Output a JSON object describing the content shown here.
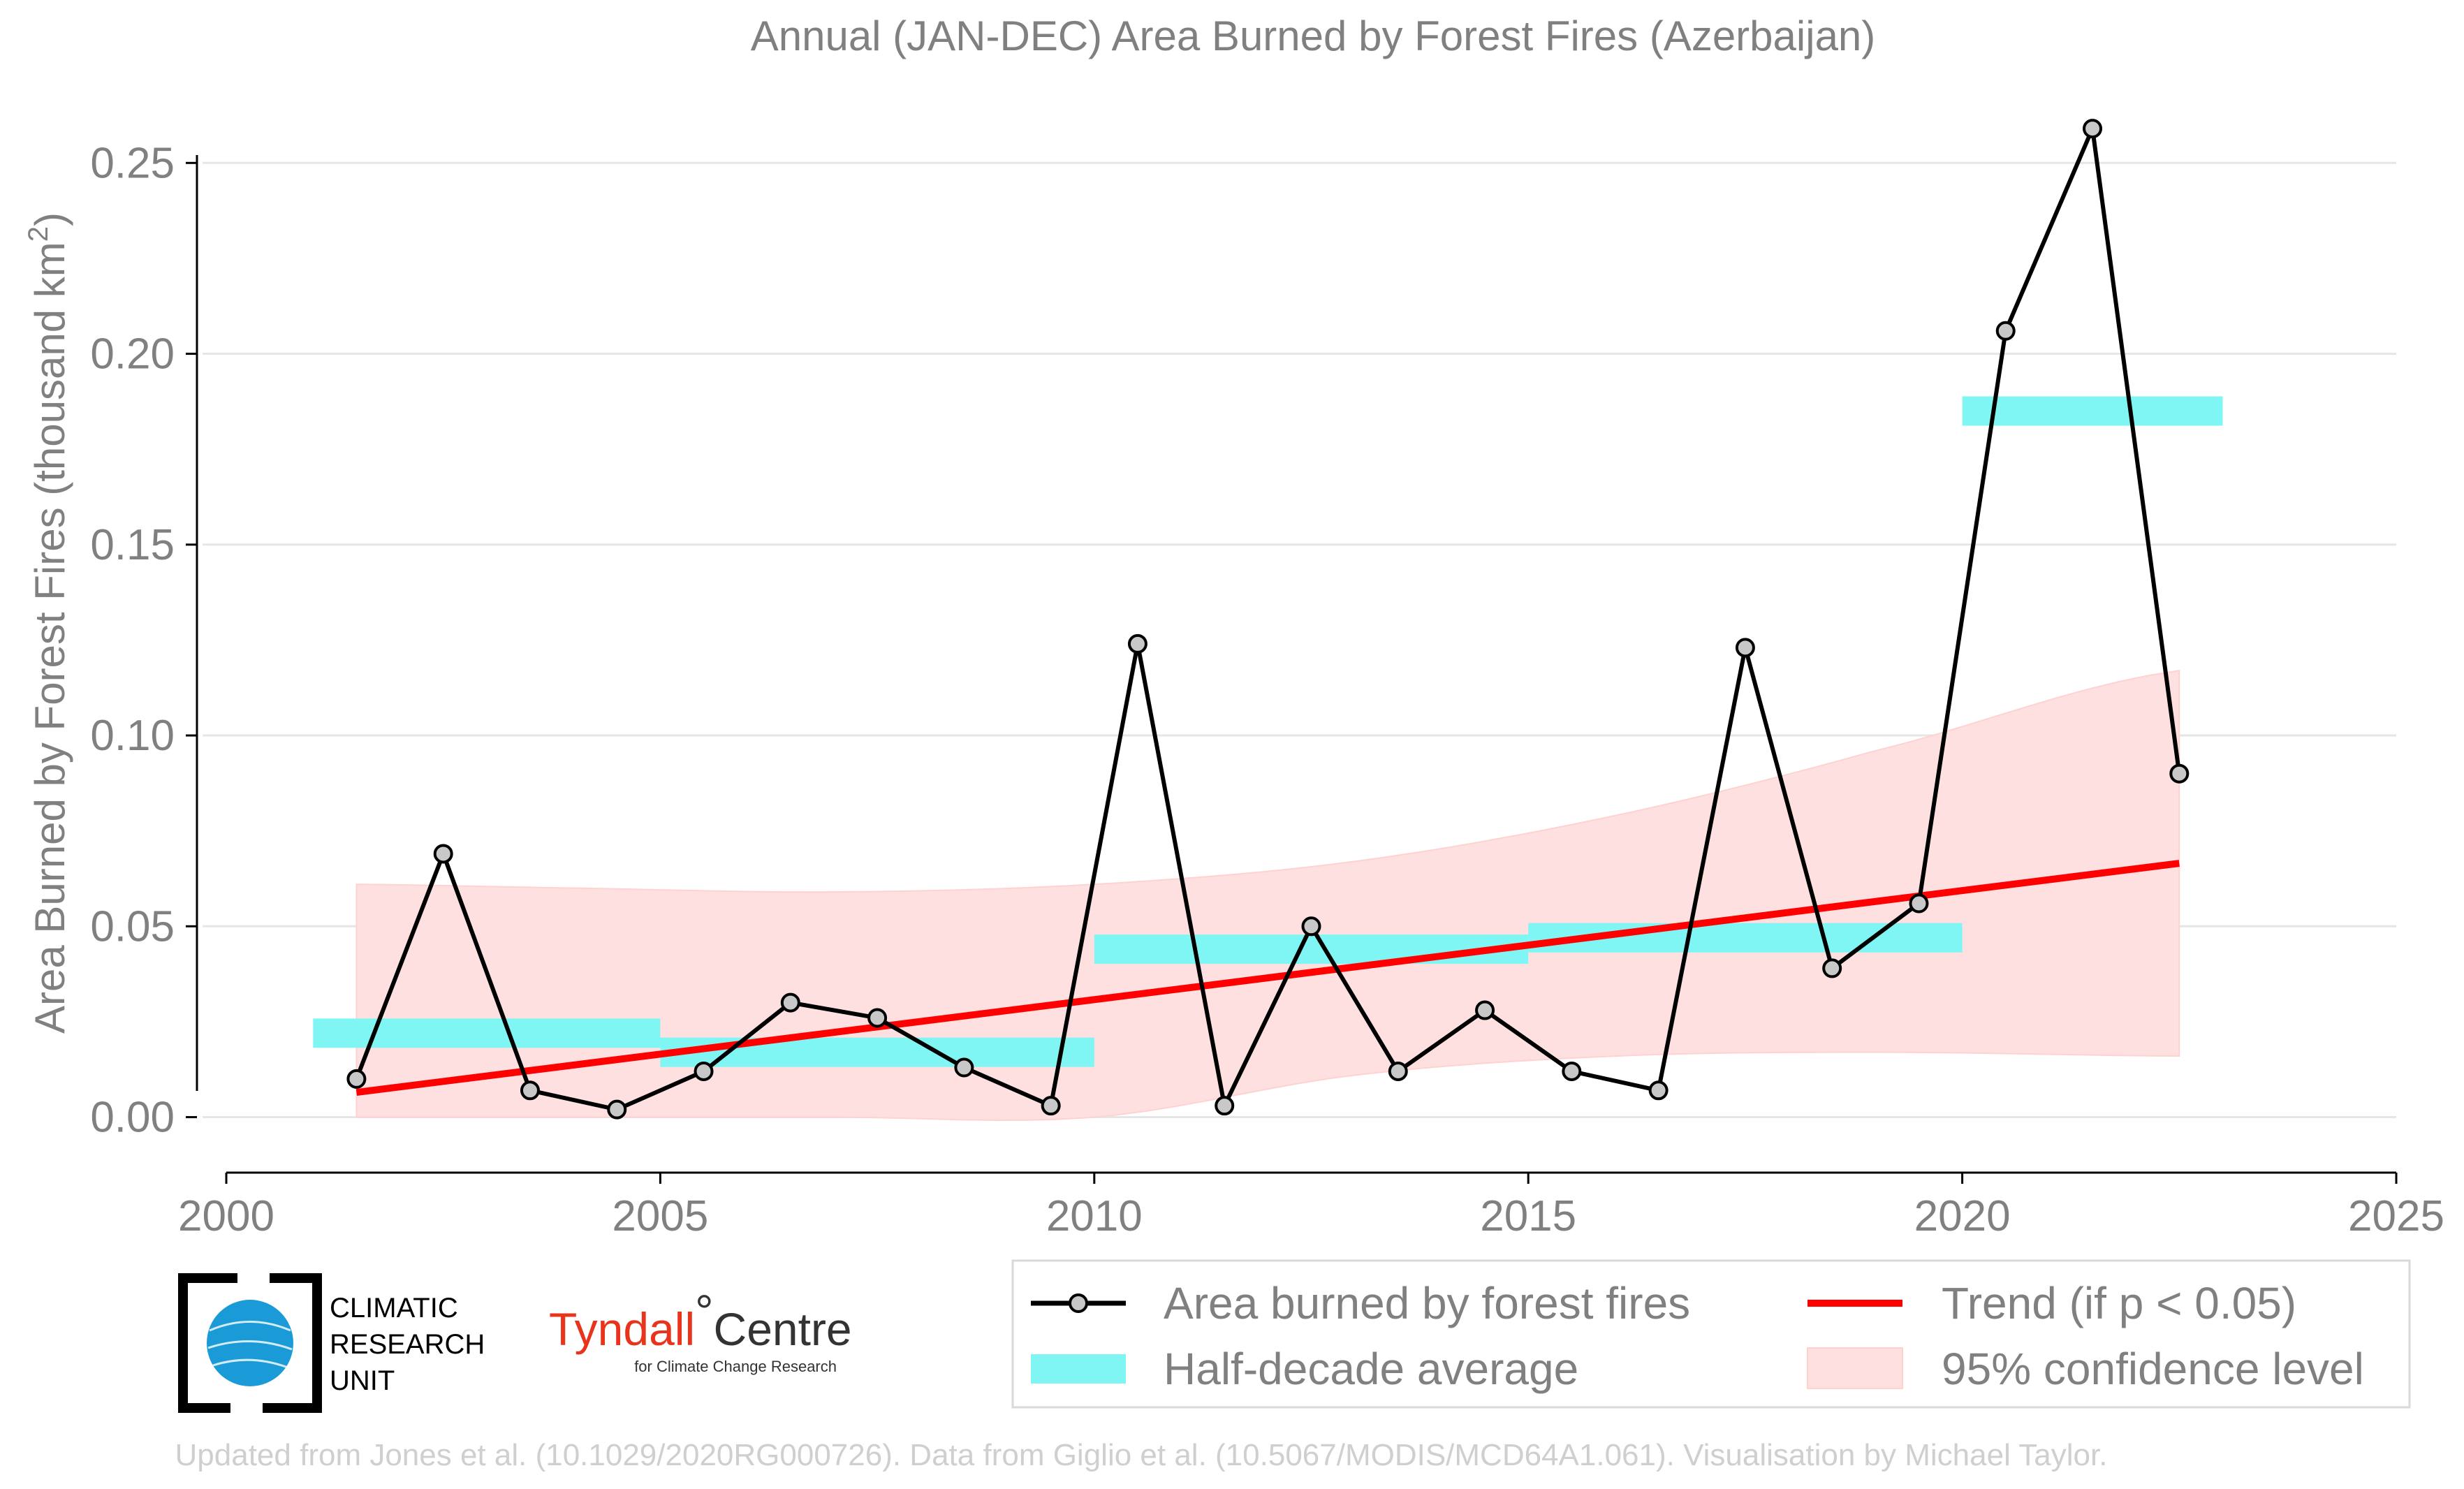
{
  "chart_data": {
    "type": "line",
    "title": "Annual (JAN-DEC) Area Burned by Forest Fires (Azerbaijan)",
    "ylabel_main": "Area Burned by Forest Fires (thousand km",
    "ylabel_sup": "2",
    "ylabel_close": ")",
    "xlim": [
      2000,
      2025
    ],
    "ylim": [
      -0.016,
      0.27
    ],
    "xticks": [
      2000,
      2005,
      2010,
      2015,
      2020,
      2025
    ],
    "xtick_labels": [
      "2000",
      "2005",
      "2010",
      "2015",
      "2020",
      "2025"
    ],
    "yticks": [
      0.0,
      0.05,
      0.1,
      0.15,
      0.2,
      0.25
    ],
    "ytick_labels": [
      "0.00",
      "0.05",
      "0.10",
      "0.15",
      "0.20",
      "0.25"
    ],
    "grid": "horizontal",
    "series": [
      {
        "name": "Area burned by forest fires",
        "color": "#000000",
        "marker_fill": "#c8c8c8",
        "x": [
          2001.5,
          2002.5,
          2003.5,
          2004.5,
          2005.5,
          2006.5,
          2007.5,
          2008.5,
          2009.5,
          2010.5,
          2011.5,
          2012.5,
          2013.5,
          2014.5,
          2015.5,
          2016.5,
          2017.5,
          2018.5,
          2019.5,
          2020.5,
          2021.5,
          2022.5
        ],
        "y": [
          0.01,
          0.069,
          0.007,
          0.002,
          0.012,
          0.03,
          0.026,
          0.013,
          0.003,
          0.124,
          0.003,
          0.05,
          0.012,
          0.028,
          0.012,
          0.007,
          0.123,
          0.039,
          0.056,
          0.206,
          0.259,
          0.09
        ]
      }
    ],
    "half_decade_average": {
      "name": "Half-decade average",
      "color": "#7ff6f3",
      "segments": [
        {
          "x_start": 2001,
          "x_end": 2005,
          "value": 0.022
        },
        {
          "x_start": 2005,
          "x_end": 2010,
          "value": 0.017
        },
        {
          "x_start": 2010,
          "x_end": 2015,
          "value": 0.044
        },
        {
          "x_start": 2015,
          "x_end": 2020,
          "value": 0.047
        },
        {
          "x_start": 2020,
          "x_end": 2023,
          "value": 0.185
        }
      ]
    },
    "trend": {
      "name": "Trend (if p < 0.05)",
      "color": "#ff0000",
      "x": [
        2001.5,
        2022.5
      ],
      "y": [
        0.0065,
        0.0665
      ]
    },
    "confidence": {
      "name": "95% confidence level",
      "color": "#ffe0e0",
      "x": [
        2001.5,
        2004,
        2007,
        2010,
        2013,
        2016,
        2019,
        2022.5
      ],
      "upper": [
        0.061,
        0.06,
        0.059,
        0.061,
        0.067,
        0.079,
        0.096,
        0.117
      ],
      "lower": [
        0.0,
        0.0,
        0.0,
        0.0,
        0.011,
        0.016,
        0.017,
        0.016
      ]
    },
    "legend_position": "bottom-right"
  },
  "logos": {
    "cru_line1": "CLIMATIC",
    "cru_line2": "RESEARCH",
    "cru_line3": "UNIT",
    "tyndall_name": "Tyndall",
    "tyndall_degree": "°",
    "tyndall_centre": "Centre",
    "tyndall_sub": "for Climate Change Research"
  },
  "footer": {
    "credit": "Updated from Jones et al. (10.1029/2020RG000726). Data from Giglio et al. (10.5067/MODIS/MCD64A1.061). Visualisation by Michael Taylor."
  }
}
